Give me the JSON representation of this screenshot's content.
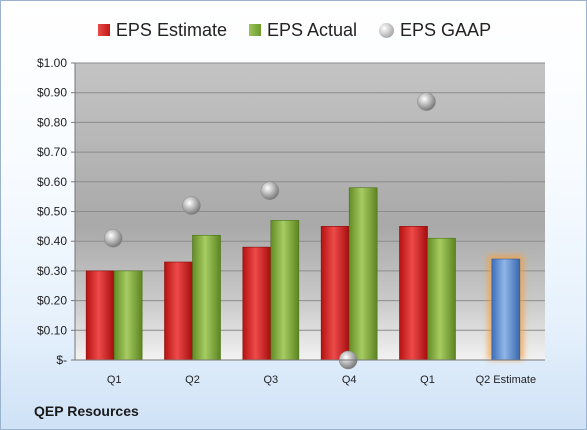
{
  "company": "QEP Resources",
  "legend": {
    "estimate": "EPS Estimate",
    "actual": "EPS Actual",
    "gaap": "EPS GAAP"
  },
  "colors": {
    "estimate": "#d42020",
    "actual": "#84b040",
    "gaap": "#b0b0b0",
    "forecast": "#5b8fd0",
    "forecast_glow": "#f4a040"
  },
  "chart_data": {
    "type": "bar",
    "categories": [
      "Q1",
      "Q2",
      "Q3",
      "Q4",
      "Q1",
      "Q2 Estimate"
    ],
    "ylim": [
      0,
      1.0
    ],
    "yticks": [
      {
        "value": 0,
        "label": "$-"
      },
      {
        "value": 0.1,
        "label": "$0.10"
      },
      {
        "value": 0.2,
        "label": "$0.20"
      },
      {
        "value": 0.3,
        "label": "$0.30"
      },
      {
        "value": 0.4,
        "label": "$0.40"
      },
      {
        "value": 0.5,
        "label": "$0.50"
      },
      {
        "value": 0.6,
        "label": "$0.60"
      },
      {
        "value": 0.7,
        "label": "$0.70"
      },
      {
        "value": 0.8,
        "label": "$0.80"
      },
      {
        "value": 0.9,
        "label": "$0.90"
      },
      {
        "value": 1.0,
        "label": "$1.00"
      }
    ],
    "series": [
      {
        "name": "EPS Estimate",
        "values": [
          0.3,
          0.33,
          0.38,
          0.45,
          0.45,
          null
        ]
      },
      {
        "name": "EPS Actual",
        "values": [
          0.3,
          0.42,
          0.47,
          0.58,
          0.41,
          null
        ]
      },
      {
        "name": "EPS GAAP",
        "values": [
          0.41,
          0.52,
          0.57,
          0.0,
          0.87,
          null
        ]
      }
    ],
    "forecast": {
      "category_index": 5,
      "value": 0.34
    },
    "grid": true,
    "legend_position": "top"
  }
}
